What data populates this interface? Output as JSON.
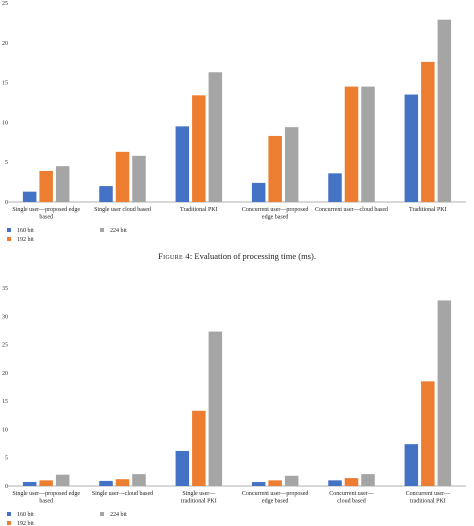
{
  "caption": {
    "figure": "Figure 4",
    "text": ": Evaluation of processing time (ms)."
  },
  "colors": {
    "160 bit": "#4472c4",
    "192 bit": "#ed7d31",
    "224 bit": "#a5a5a5"
  },
  "chart_data": [
    {
      "type": "bar",
      "ylim": [
        0,
        25
      ],
      "yticks": [
        "0",
        "5",
        "10",
        "15",
        "20",
        "25"
      ],
      "categories": [
        [
          "Single user—proposed edge",
          "based"
        ],
        [
          "Single user cloud based"
        ],
        [
          "Traditional PKI"
        ],
        [
          "Concurrent user—proposed",
          "edge based"
        ],
        [
          "Concurrent user—cloud based"
        ],
        [
          "Traditional PKI"
        ]
      ],
      "series": [
        {
          "name": "160 bit",
          "values": [
            1.3,
            2.0,
            9.5,
            2.4,
            3.6,
            13.5
          ]
        },
        {
          "name": "192 bit",
          "values": [
            3.9,
            6.3,
            13.4,
            8.3,
            14.5,
            17.6
          ]
        },
        {
          "name": "224 bit",
          "values": [
            4.5,
            5.8,
            16.3,
            9.4,
            14.5,
            22.9
          ]
        }
      ]
    },
    {
      "type": "bar",
      "ylim": [
        0,
        35
      ],
      "yticks": [
        "0",
        "5",
        "10",
        "15",
        "20",
        "25",
        "30",
        "35"
      ],
      "categories": [
        [
          "Single user—proposed edge",
          "based"
        ],
        [
          "Single user—cloud based"
        ],
        [
          "Single user—",
          "traditional PKI"
        ],
        [
          "Concurrent user—proposed",
          "edge based"
        ],
        [
          "Concurrent user—",
          "cloud based"
        ],
        [
          "Concurrent user—",
          "traditional PKI"
        ]
      ],
      "series": [
        {
          "name": "160 bit",
          "values": [
            0.7,
            0.9,
            6.2,
            0.7,
            1.0,
            7.4
          ]
        },
        {
          "name": "192 bit",
          "values": [
            1.0,
            1.2,
            13.3,
            1.0,
            1.4,
            18.5
          ]
        },
        {
          "name": "224 bit",
          "values": [
            2.0,
            2.1,
            27.3,
            1.8,
            2.1,
            32.8
          ]
        }
      ]
    }
  ]
}
